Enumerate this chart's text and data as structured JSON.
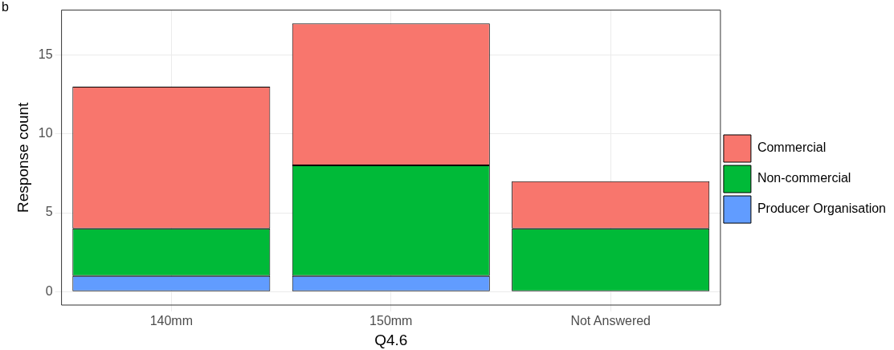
{
  "chart_data": {
    "type": "bar",
    "stacked": true,
    "xlabel": "Q4.6",
    "ylabel": "Response count",
    "annotations": [
      "b"
    ],
    "categories": [
      "140mm",
      "150mm",
      "Not Answered"
    ],
    "series": [
      {
        "name": "Producer Organisation",
        "color": "#619cff",
        "values": [
          1,
          1,
          0
        ]
      },
      {
        "name": "Non-commercial",
        "color": "#00ba38",
        "values": [
          3,
          7,
          4
        ]
      },
      {
        "name": "Commercial",
        "color": "#f8766d",
        "values": [
          9,
          9,
          3
        ]
      }
    ],
    "ylim": [
      -0.85,
      17.85
    ],
    "yticks": [
      0,
      5,
      10,
      15
    ],
    "grid": true,
    "legend": "right"
  }
}
